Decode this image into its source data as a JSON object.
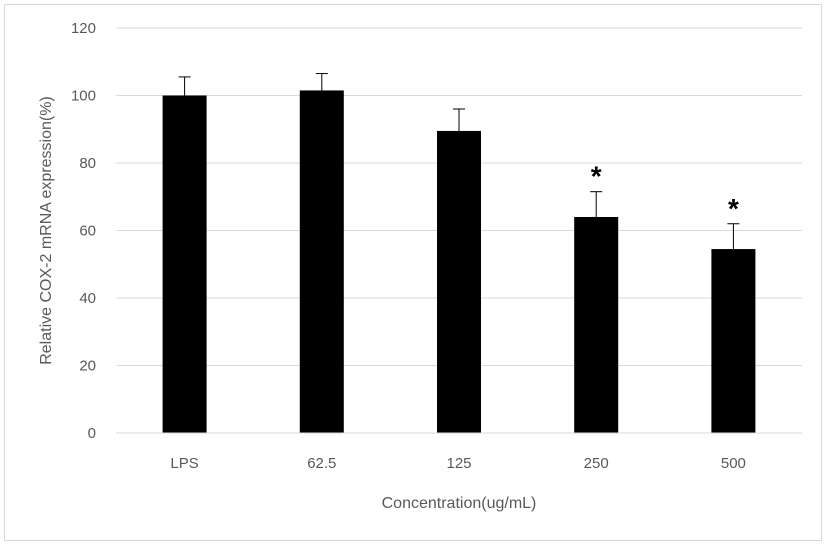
{
  "chart_data": {
    "type": "bar",
    "categories": [
      "LPS",
      "62.5",
      "125",
      "250",
      "500"
    ],
    "values": [
      100,
      101.5,
      89.5,
      64,
      54.5
    ],
    "errors": [
      5.5,
      5,
      6.5,
      7.5,
      7.5
    ],
    "annotations": [
      "",
      "",
      "",
      "*",
      "*"
    ],
    "xlabel": "Concentration(ug/mL)",
    "ylabel": "Relative COX-2 mRNA expression(%)",
    "ylim": [
      0,
      120
    ],
    "yticks": [
      0,
      20,
      40,
      60,
      80,
      100,
      120
    ],
    "grid": true,
    "legend": "none",
    "bar_color": "#000000",
    "grid_color": "#d9d9d9"
  }
}
